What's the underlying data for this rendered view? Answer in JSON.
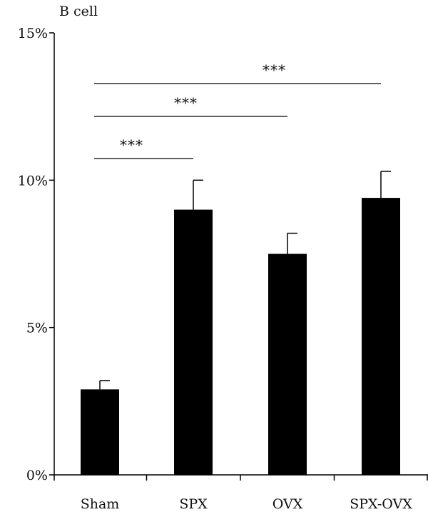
{
  "chart_data": {
    "type": "bar",
    "title": "B cell",
    "xlabel": "",
    "ylabel": "",
    "categories": [
      "Sham",
      "SPX",
      "OVX",
      "SPX-OVX"
    ],
    "values": [
      2.9,
      9.0,
      7.5,
      9.4
    ],
    "errors": [
      0.3,
      1.0,
      0.7,
      0.9
    ],
    "ylim": [
      0,
      15
    ],
    "yticks": [
      0,
      5,
      10,
      15
    ],
    "ytick_labels": [
      "0%",
      "5%",
      "10%",
      "15%"
    ],
    "bar_color": "#000000",
    "grid": false,
    "legend": "none",
    "significance": [
      {
        "from": "Sham",
        "to": "SPX",
        "label": "***"
      },
      {
        "from": "Sham",
        "to": "OVX",
        "label": "***"
      },
      {
        "from": "Sham",
        "to": "SPX-OVX",
        "label": "***"
      }
    ]
  }
}
